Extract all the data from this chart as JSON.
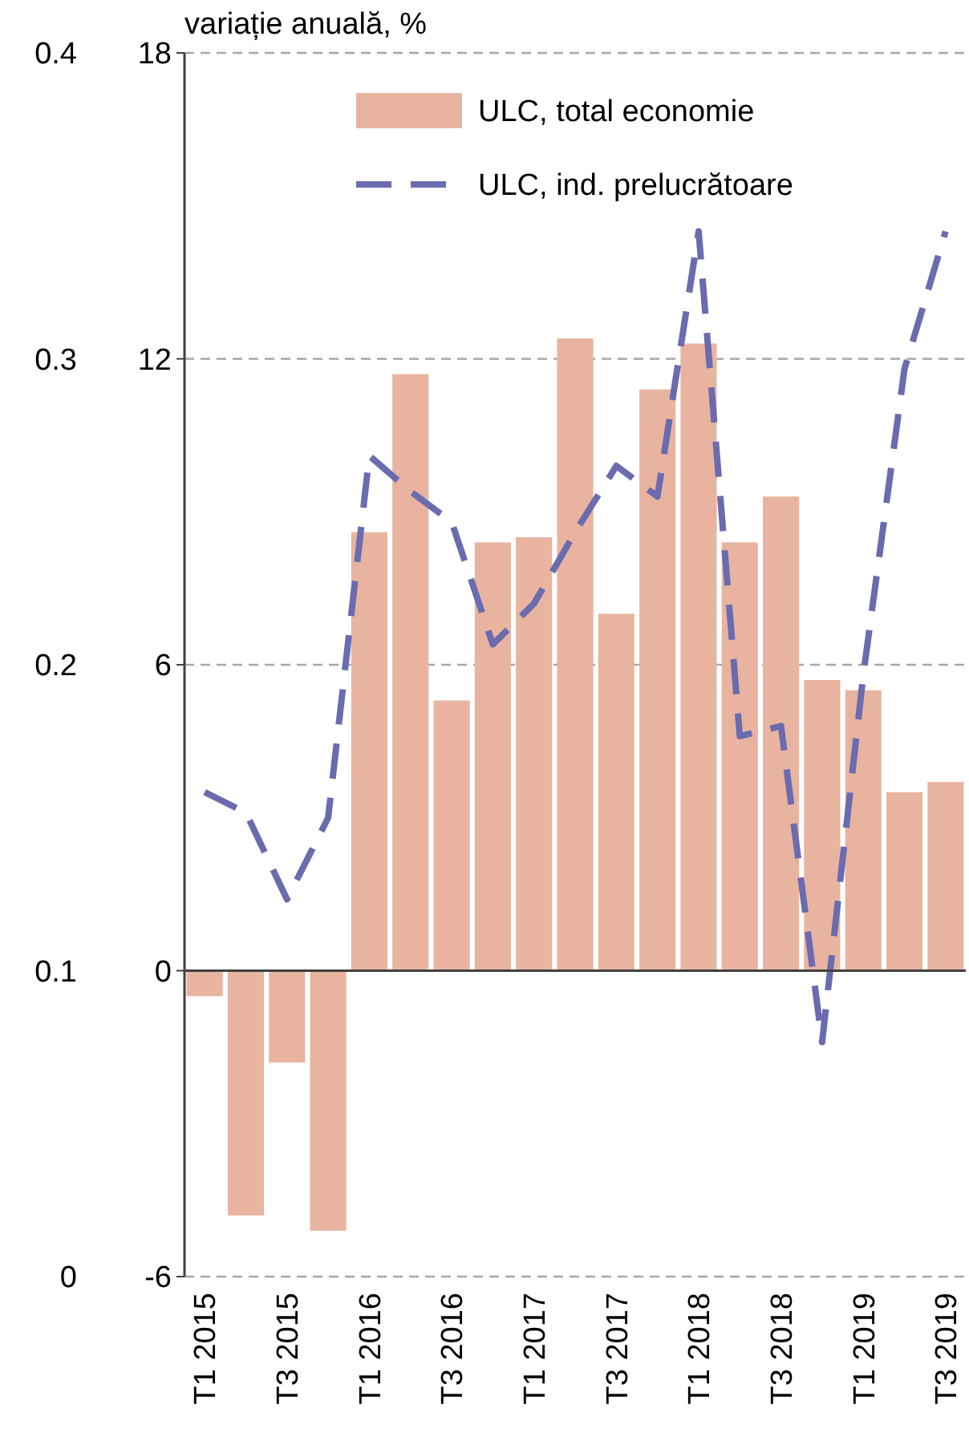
{
  "chart_data": {
    "type": "bar",
    "ylabel": "variație anuală, %",
    "categories": [
      "T1 2015",
      null,
      "T3 2015",
      null,
      "T1 2016",
      null,
      "T3 2016",
      null,
      "T1 2017",
      null,
      "T3 2017",
      null,
      "T1 2018",
      null,
      "T3 2018",
      null,
      "T1 2019",
      null,
      "T3 2019"
    ],
    "series": [
      {
        "name": "ULC, total economie",
        "color": "#e8b4a0",
        "values": [
          -0.5,
          -4.8,
          -1.8,
          -5.1,
          8.6,
          11.7,
          5.3,
          8.4,
          8.5,
          12.4,
          7.0,
          11.4,
          12.3,
          8.4,
          9.3,
          5.7,
          5.5,
          3.5,
          3.7
        ]
      },
      {
        "name": "ULC, ind. prelucrătoare",
        "type": "line",
        "color": "#6b6baf",
        "line_style": "dashed",
        "values": [
          3.5,
          3.1,
          1.4,
          3.0,
          10.1,
          9.4,
          8.8,
          6.4,
          7.2,
          8.6,
          9.9,
          9.3,
          14.5,
          4.6,
          4.8,
          -1.4,
          5.8,
          11.8,
          14.5
        ]
      }
    ],
    "ylim": [
      -6,
      18
    ],
    "yticks": [
      -6,
      0,
      6,
      12,
      18
    ],
    "y2lim": [
      0,
      0.4
    ],
    "y2ticks": [
      0,
      0.1,
      0.2,
      0.3,
      0.4
    ],
    "grid": "y",
    "legend": "top right"
  }
}
